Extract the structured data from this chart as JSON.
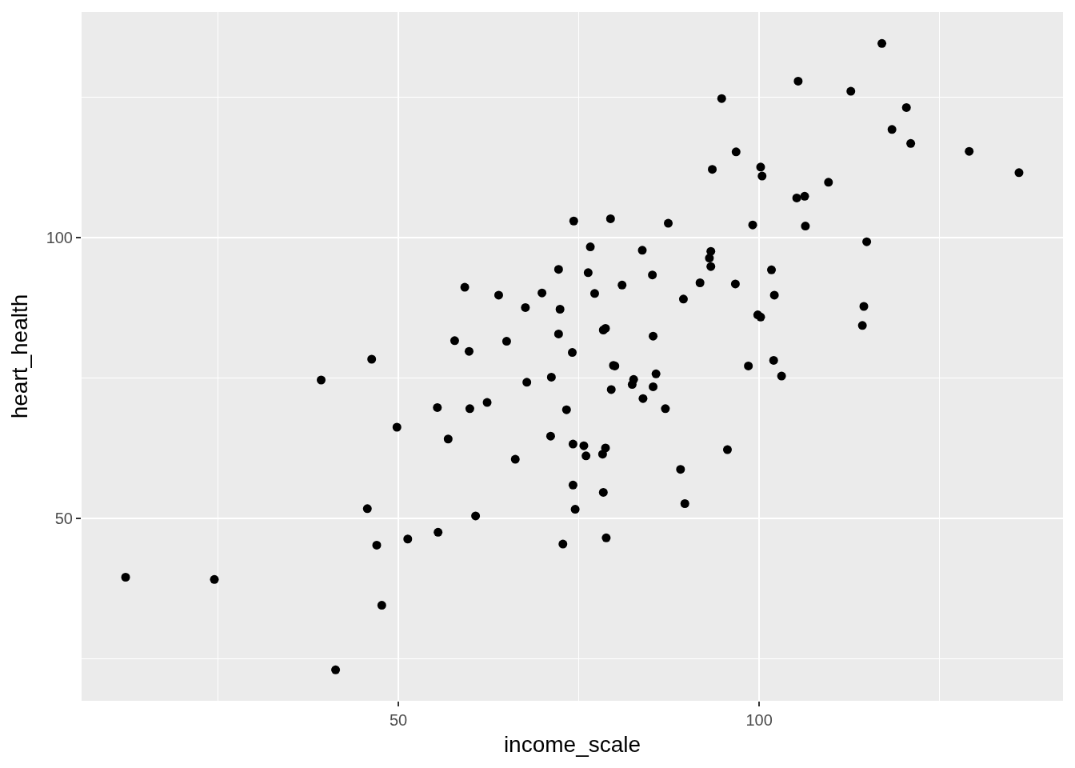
{
  "chart_data": {
    "type": "scatter",
    "xlabel": "income_scale",
    "ylabel": "heart_health",
    "color": "#000000",
    "marker": "circle",
    "grid": true,
    "x": [
      117.0,
      105.4,
      112.7,
      94.8,
      120.4,
      118.4,
      121.0,
      96.8,
      129.1,
      93.5,
      100.2,
      100.4,
      136.0,
      109.6,
      105.2,
      106.3,
      74.3,
      79.4,
      87.4,
      99.1,
      106.4,
      114.9,
      76.6,
      83.8,
      93.3,
      93.1,
      93.3,
      72.2,
      76.3,
      85.2,
      101.7,
      91.8,
      96.7,
      81.0,
      59.2,
      69.9,
      77.2,
      63.9,
      102.1,
      89.5,
      67.6,
      72.4,
      114.5,
      99.8,
      100.2,
      114.3,
      78.7,
      78.4,
      85.3,
      72.2,
      57.8,
      65.0,
      59.8,
      74.1,
      46.3,
      39.3,
      79.8,
      80.0,
      85.7,
      82.6,
      82.4,
      85.3,
      67.8,
      71.2,
      79.5,
      83.9,
      87.0,
      55.4,
      59.9,
      62.3,
      73.3,
      49.8,
      56.9,
      71.1,
      74.2,
      75.7,
      76.0,
      78.7,
      78.3,
      95.6,
      66.2,
      89.1,
      74.2,
      78.4,
      89.7,
      74.5,
      45.7,
      60.7,
      55.5,
      51.3,
      47.0,
      72.8,
      78.8,
      12.2,
      24.5,
      47.7,
      41.3,
      98.5,
      102.0,
      103.1
    ],
    "values": [
      134.5,
      127.8,
      126.0,
      124.7,
      123.1,
      119.2,
      116.7,
      115.2,
      115.3,
      112.1,
      112.5,
      110.9,
      111.5,
      109.8,
      107.0,
      107.3,
      102.9,
      103.3,
      102.5,
      102.2,
      102.0,
      99.2,
      98.3,
      97.7,
      97.5,
      96.3,
      94.8,
      94.3,
      93.7,
      93.3,
      94.2,
      91.9,
      91.7,
      91.5,
      91.1,
      90.1,
      90.0,
      89.7,
      89.7,
      89.0,
      87.5,
      87.2,
      87.7,
      86.2,
      85.8,
      84.3,
      83.8,
      83.5,
      82.4,
      82.8,
      81.6,
      81.5,
      79.7,
      79.5,
      78.3,
      74.6,
      77.2,
      77.1,
      75.7,
      74.7,
      73.8,
      73.4,
      74.2,
      75.1,
      72.9,
      71.3,
      69.5,
      69.7,
      69.5,
      70.6,
      69.3,
      66.2,
      64.1,
      64.6,
      63.2,
      62.9,
      61.1,
      62.5,
      61.4,
      62.2,
      60.5,
      58.7,
      55.9,
      54.6,
      52.6,
      51.6,
      51.7,
      50.4,
      47.5,
      46.3,
      45.2,
      45.4,
      46.5,
      39.5,
      39.1,
      34.5,
      23.0,
      77.1,
      78.1,
      75.3
    ],
    "xlim": [
      6.1,
      142.1
    ],
    "ylim": [
      17.5,
      140.1
    ],
    "xticks": [
      {
        "value": 25,
        "label": null
      },
      50,
      {
        "value": 75,
        "label": null
      },
      100,
      {
        "value": 125,
        "label": null
      }
    ],
    "yticks": [
      {
        "value": 25,
        "label": null
      },
      50,
      {
        "value": 75,
        "label": null
      },
      100,
      {
        "value": 125,
        "label": null
      }
    ]
  }
}
